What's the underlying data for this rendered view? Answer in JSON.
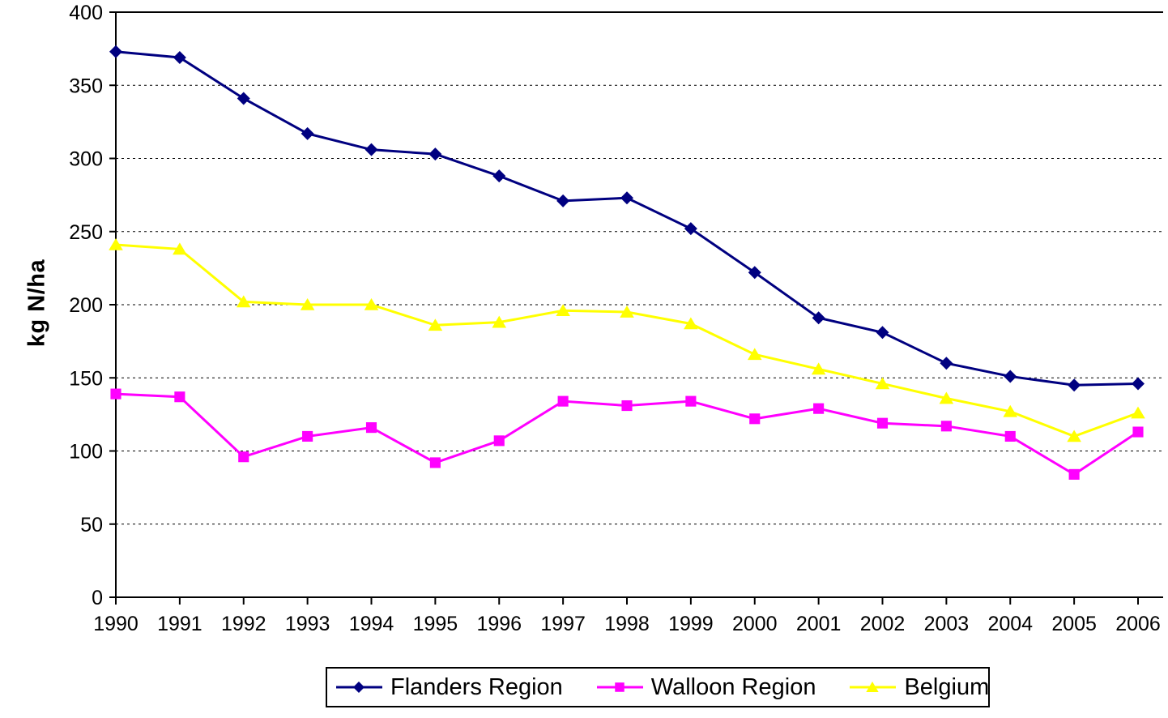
{
  "chart_data": {
    "type": "line",
    "title": "",
    "xlabel": "",
    "ylabel": "kg N/ha",
    "ylim": [
      0,
      400
    ],
    "yticks": [
      0,
      50,
      100,
      150,
      200,
      250,
      300,
      350,
      400
    ],
    "grid": "horizontal-dashed",
    "legend_position": "bottom-center",
    "categories": [
      "1990",
      "1991",
      "1992",
      "1993",
      "1994",
      "1995",
      "1996",
      "1997",
      "1998",
      "1999",
      "2000",
      "2001",
      "2002",
      "2003",
      "2004",
      "2005",
      "2006"
    ],
    "series": [
      {
        "name": "Flanders Region",
        "color": "#000080",
        "marker": "diamond",
        "values": [
          373,
          369,
          341,
          317,
          306,
          303,
          288,
          271,
          273,
          252,
          222,
          191,
          181,
          160,
          151,
          145,
          146
        ]
      },
      {
        "name": "Walloon Region",
        "color": "#FF00FF",
        "marker": "square",
        "values": [
          139,
          137,
          96,
          110,
          116,
          92,
          107,
          134,
          131,
          134,
          122,
          129,
          119,
          117,
          110,
          84,
          113
        ]
      },
      {
        "name": "Belgium",
        "color": "#FFFF00",
        "marker": "triangle",
        "values": [
          241,
          238,
          202,
          200,
          200,
          186,
          188,
          196,
          195,
          187,
          166,
          156,
          146,
          136,
          127,
          110,
          126
        ]
      }
    ]
  },
  "colors": {
    "axis": "#000000",
    "background": "#FFFFFF"
  }
}
